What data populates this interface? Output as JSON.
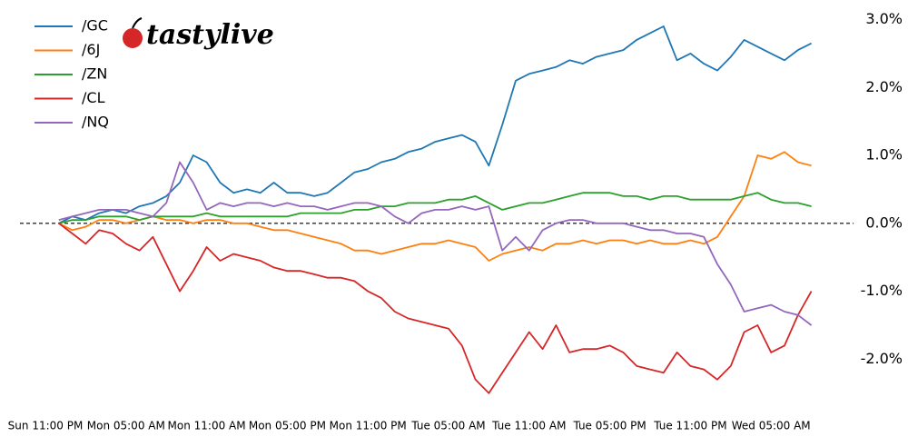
{
  "chart_data": {
    "type": "line",
    "logo": "tastylive",
    "categories": [
      "Sun 11:00 PM",
      null,
      null,
      null,
      null,
      null,
      "Mon 05:00 AM",
      null,
      null,
      null,
      null,
      null,
      "Mon 11:00 AM",
      null,
      null,
      null,
      null,
      null,
      "Mon 05:00 PM",
      null,
      null,
      null,
      null,
      null,
      "Mon 11:00 PM",
      null,
      null,
      null,
      null,
      null,
      "Tue 05:00 AM",
      null,
      null,
      null,
      null,
      null,
      "Tue 11:00 AM",
      null,
      null,
      null,
      null,
      null,
      "Tue 05:00 PM",
      null,
      null,
      null,
      null,
      null,
      "Tue 11:00 PM",
      null,
      null,
      null,
      null,
      null,
      "Wed 05:00 AM",
      null,
      null,
      null
    ],
    "series": [
      {
        "name": "/GC",
        "color": "#1f77b4",
        "values": [
          null,
          0.0,
          0.1,
          0.05,
          0.15,
          0.2,
          0.15,
          0.25,
          0.3,
          0.4,
          0.6,
          1.0,
          0.9,
          0.6,
          0.45,
          0.5,
          0.45,
          0.6,
          0.45,
          0.45,
          0.4,
          0.45,
          0.6,
          0.75,
          0.8,
          0.9,
          0.95,
          1.05,
          1.1,
          1.2,
          1.25,
          1.3,
          1.2,
          0.85,
          1.45,
          2.1,
          2.2,
          2.25,
          2.3,
          2.4,
          2.35,
          2.45,
          2.5,
          2.55,
          2.7,
          2.8,
          2.9,
          2.4,
          2.5,
          2.35,
          2.25,
          2.45,
          2.7,
          2.6,
          2.5,
          2.4,
          2.55,
          2.65
        ]
      },
      {
        "name": "/6J",
        "color": "#ff7f0e",
        "values": [
          null,
          0.0,
          -0.1,
          -0.05,
          0.05,
          0.05,
          0.0,
          0.05,
          0.1,
          0.05,
          0.05,
          0.0,
          0.05,
          0.05,
          0.0,
          0.0,
          -0.05,
          -0.1,
          -0.1,
          -0.15,
          -0.2,
          -0.25,
          -0.3,
          -0.4,
          -0.4,
          -0.45,
          -0.4,
          -0.35,
          -0.3,
          -0.3,
          -0.25,
          -0.3,
          -0.35,
          -0.55,
          -0.45,
          -0.4,
          -0.35,
          -0.4,
          -0.3,
          -0.3,
          -0.25,
          -0.3,
          -0.25,
          -0.25,
          -0.3,
          -0.25,
          -0.3,
          -0.3,
          -0.25,
          -0.3,
          -0.2,
          0.1,
          0.4,
          1.0,
          0.95,
          1.05,
          0.9,
          0.85
        ]
      },
      {
        "name": "/ZN",
        "color": "#2ca02c",
        "values": [
          null,
          0.0,
          0.05,
          0.05,
          0.1,
          0.1,
          0.1,
          0.05,
          0.1,
          0.1,
          0.1,
          0.1,
          0.15,
          0.1,
          0.1,
          0.1,
          0.1,
          0.1,
          0.1,
          0.15,
          0.15,
          0.15,
          0.15,
          0.2,
          0.2,
          0.25,
          0.25,
          0.3,
          0.3,
          0.3,
          0.35,
          0.35,
          0.4,
          0.3,
          0.2,
          0.25,
          0.3,
          0.3,
          0.35,
          0.4,
          0.45,
          0.45,
          0.45,
          0.4,
          0.4,
          0.35,
          0.4,
          0.4,
          0.35,
          0.35,
          0.35,
          0.35,
          0.4,
          0.45,
          0.35,
          0.3,
          0.3,
          0.25
        ]
      },
      {
        "name": "/CL",
        "color": "#d62728",
        "values": [
          null,
          0.0,
          -0.15,
          -0.3,
          -0.1,
          -0.15,
          -0.3,
          -0.4,
          -0.2,
          -0.6,
          -1.0,
          -0.7,
          -0.35,
          -0.55,
          -0.45,
          -0.5,
          -0.55,
          -0.65,
          -0.7,
          -0.7,
          -0.75,
          -0.8,
          -0.8,
          -0.85,
          -1.0,
          -1.1,
          -1.3,
          -1.4,
          -1.45,
          -1.5,
          -1.55,
          -1.8,
          -2.3,
          -2.5,
          -2.2,
          -1.9,
          -1.6,
          -1.85,
          -1.5,
          -1.9,
          -1.85,
          -1.85,
          -1.8,
          -1.9,
          -2.1,
          -2.15,
          -2.2,
          -1.9,
          -2.1,
          -2.15,
          -2.3,
          -2.1,
          -1.6,
          -1.5,
          -1.9,
          -1.8,
          -1.35,
          -1.0
        ]
      },
      {
        "name": "/NQ",
        "color": "#9467bd",
        "values": [
          null,
          0.05,
          0.1,
          0.15,
          0.2,
          0.2,
          0.2,
          0.15,
          0.1,
          0.3,
          0.9,
          0.6,
          0.2,
          0.3,
          0.25,
          0.3,
          0.3,
          0.25,
          0.3,
          0.25,
          0.25,
          0.2,
          0.25,
          0.3,
          0.3,
          0.25,
          0.1,
          0.0,
          0.15,
          0.2,
          0.2,
          0.25,
          0.2,
          0.25,
          -0.4,
          -0.2,
          -0.4,
          -0.1,
          0.0,
          0.05,
          0.05,
          0.0,
          0.0,
          0.0,
          -0.05,
          -0.1,
          -0.1,
          -0.15,
          -0.15,
          -0.2,
          -0.6,
          -0.9,
          -1.3,
          -1.25,
          -1.2,
          -1.3,
          -1.35,
          -1.5
        ]
      }
    ],
    "ylim": [
      -2.65,
      3.1
    ],
    "yticks": [
      {
        "value": 3,
        "label": "3.0%"
      },
      {
        "value": 2,
        "label": "2.0%"
      },
      {
        "value": 1,
        "label": "1.0%"
      },
      {
        "value": 0,
        "label": "0.0%"
      },
      {
        "value": -1,
        "label": "-1.0%"
      },
      {
        "value": -2,
        "label": "-2.0%"
      }
    ],
    "reference_line": 0,
    "legend": "upper left"
  }
}
